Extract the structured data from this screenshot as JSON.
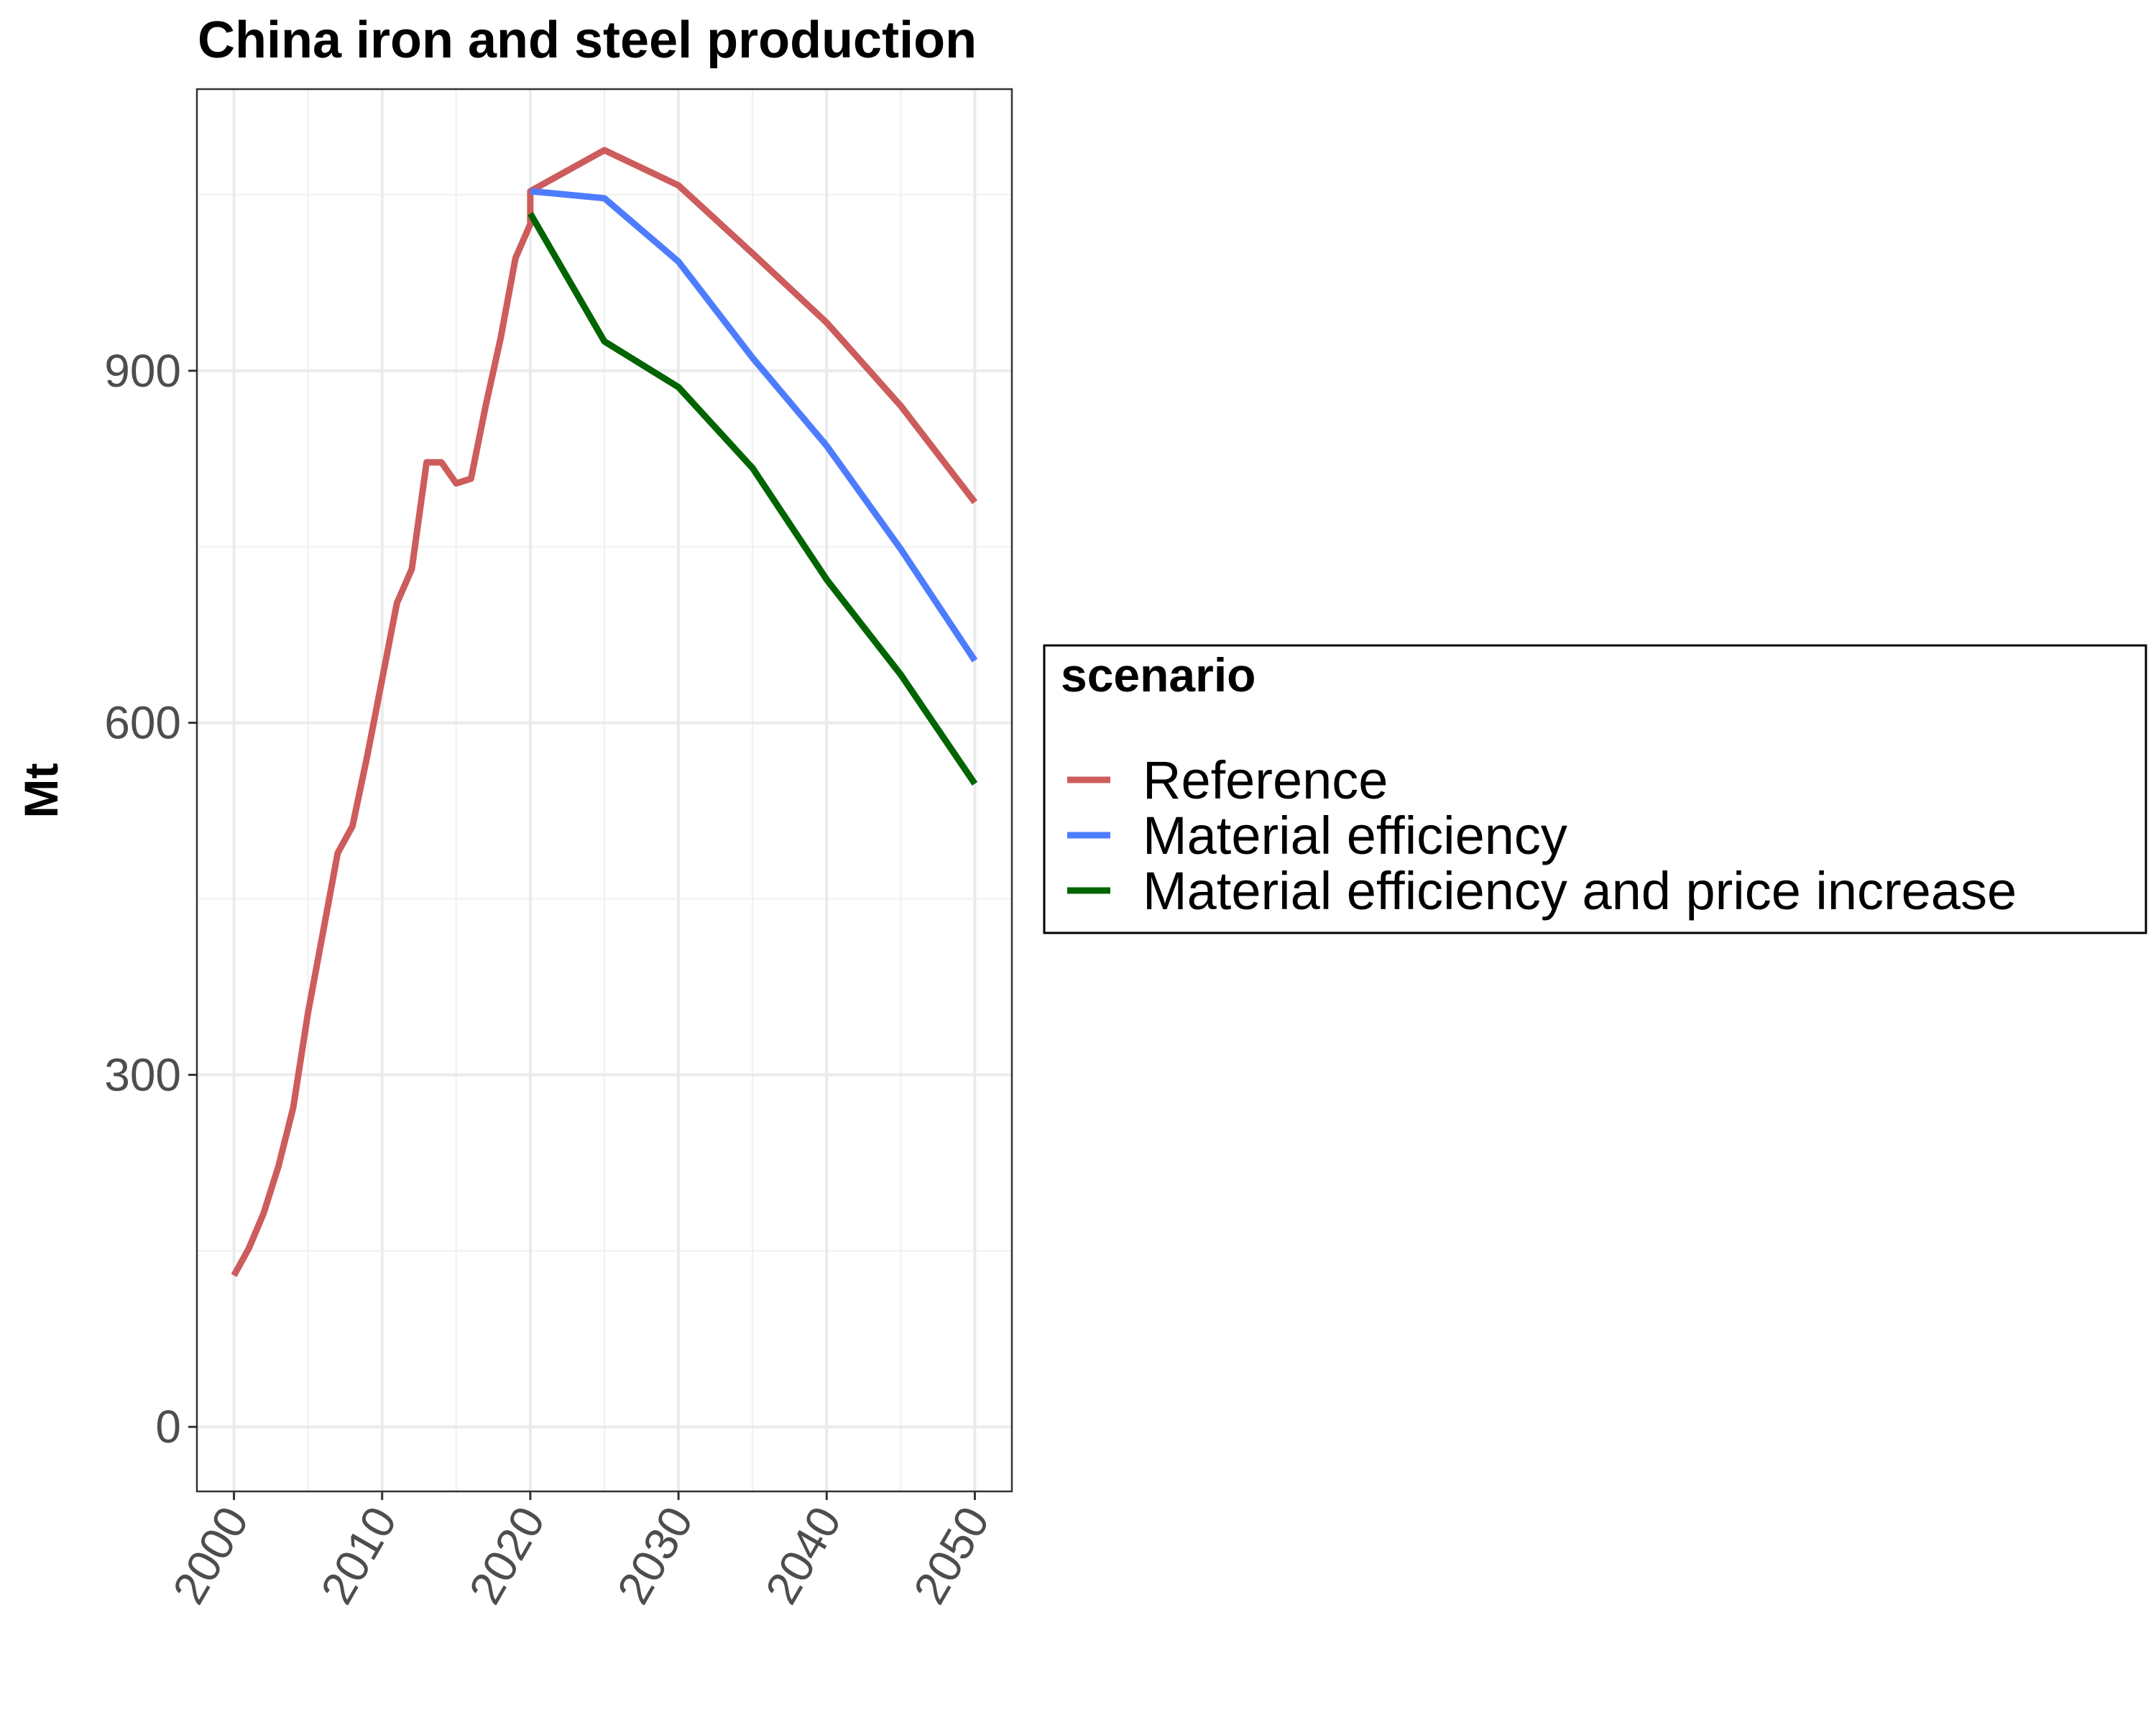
{
  "chart_data": {
    "type": "line",
    "title": "China  iron and steel production",
    "xlabel": "",
    "ylabel": "Mt",
    "xlim": [
      1997.5,
      2052.5
    ],
    "ylim": [
      -55,
      1140
    ],
    "x_ticks": [
      2000,
      2010,
      2020,
      2030,
      2040,
      2050
    ],
    "x_tick_labels": [
      "2000",
      "2010",
      "2020",
      "2030",
      "2040",
      "2050"
    ],
    "y_ticks": [
      0,
      300,
      600,
      900
    ],
    "y_tick_labels": [
      "0",
      "300",
      "600",
      "900"
    ],
    "grid": true,
    "legend": {
      "title": "scenario",
      "position": "right"
    },
    "series": [
      {
        "name": "Reference",
        "color": "#CD5C5C",
        "x": [
          2000,
          2001,
          2002,
          2003,
          2004,
          2005,
          2006,
          2007,
          2008,
          2009,
          2010,
          2011,
          2012,
          2013,
          2014,
          2015,
          2016,
          2017,
          2018,
          2019,
          2020,
          2020,
          2025,
          2030,
          2035,
          2040,
          2045,
          2050
        ],
        "y": [
          129,
          152,
          182,
          222,
          272,
          353,
          421,
          489,
          512,
          572,
          637,
          702,
          731,
          822,
          822,
          804,
          808,
          871,
          928,
          996,
          1025,
          1053,
          1088,
          1058,
          1000,
          941,
          870,
          788
        ]
      },
      {
        "name": "Material efficiency",
        "color": "#4D7CFE",
        "x": [
          2020,
          2025,
          2030,
          2035,
          2040,
          2045,
          2050
        ],
        "y": [
          1053,
          1047,
          993,
          911,
          836,
          748,
          653
        ]
      },
      {
        "name": "Material efficiency and price increase",
        "color": "#006400",
        "x": [
          2020,
          2025,
          2030,
          2035,
          2040,
          2045,
          2050
        ],
        "y": [
          1034,
          925,
          886,
          817,
          722,
          641,
          548
        ]
      }
    ]
  }
}
